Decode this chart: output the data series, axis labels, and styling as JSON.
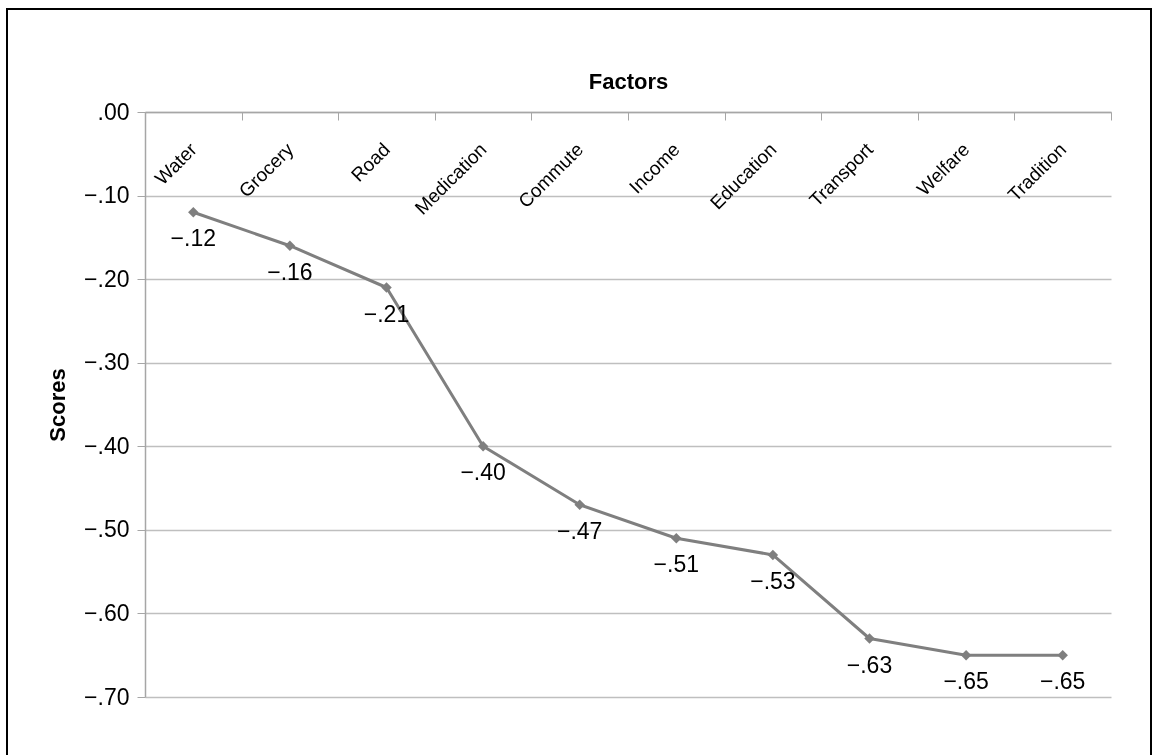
{
  "chart_data": {
    "type": "line",
    "xlabel": "Factors",
    "ylabel": "Scores",
    "categories": [
      "Water",
      "Grocery",
      "Road",
      "Medication",
      "Commute",
      "Income",
      "Education",
      "Transport",
      "Welfare",
      "Tradition"
    ],
    "series": [
      {
        "color": "#7f7f7f",
        "values": [
          -0.12,
          -0.16,
          -0.21,
          -0.4,
          -0.47,
          -0.51,
          -0.53,
          -0.63,
          -0.65,
          -0.65
        ],
        "value_labels": [
          "−.12",
          "−.16",
          "−.21",
          "−.40",
          "−.47",
          "−.51",
          "−.53",
          "−.63",
          "−.65",
          "−.65"
        ]
      }
    ],
    "ylim": [
      -0.7,
      0
    ],
    "yticks": [
      {
        "value": 0,
        "label": ".00"
      },
      {
        "value": -0.1,
        "label": "−.10"
      },
      {
        "value": -0.2,
        "label": "−.20"
      },
      {
        "value": -0.3,
        "label": "−.30"
      },
      {
        "value": -0.4,
        "label": "−.40"
      },
      {
        "value": -0.5,
        "label": "−.50"
      },
      {
        "value": -0.6,
        "label": "−.60"
      },
      {
        "value": -0.7,
        "label": "−.70"
      }
    ],
    "grid": "y",
    "marker": "diamond",
    "line_style": "solid"
  }
}
